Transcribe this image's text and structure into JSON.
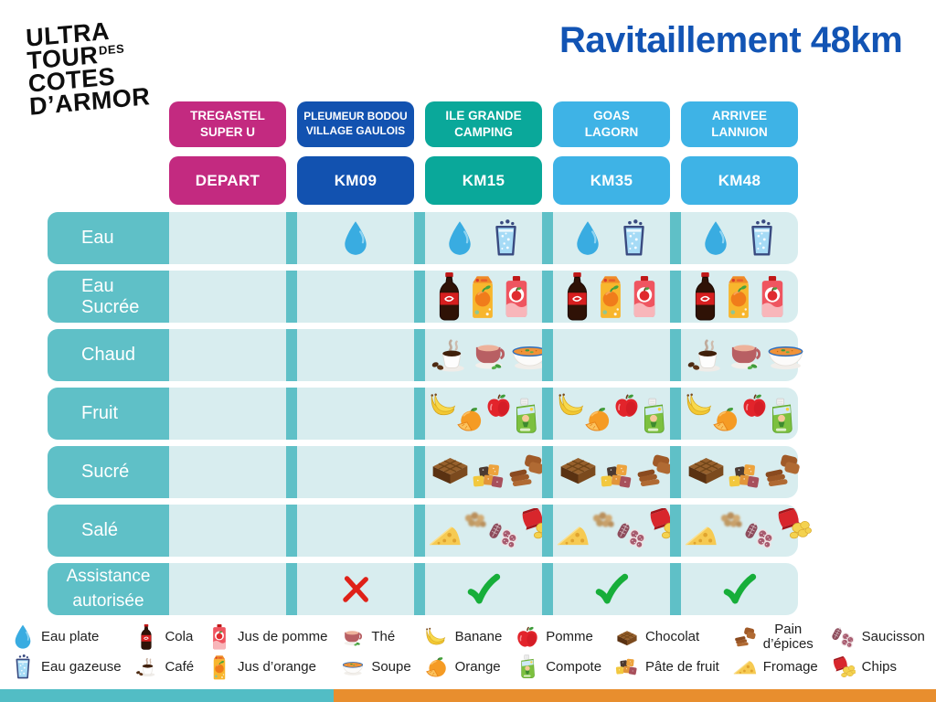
{
  "logo": {
    "line1": "ULTRA",
    "line2": "TOUR",
    "line2_small": "DES",
    "line3": "COTES",
    "line4": "D’ARMOR"
  },
  "title": "Ravitaillement 48km",
  "stations": [
    {
      "name": "TREGASTEL\nSUPER U",
      "km": "DEPART",
      "color": "#c32a80"
    },
    {
      "name": "PLEUMEUR BODOU\nVILLAGE GAULOIS",
      "km": "KM09",
      "color": "#1252b0"
    },
    {
      "name": "ILE GRANDE\nCAMPING",
      "km": "KM15",
      "color": "#0aa89a"
    },
    {
      "name": "GOAS\nLAGORN",
      "km": "KM35",
      "color": "#3eb3e6"
    },
    {
      "name": "ARRIVEE\nLANNION",
      "km": "KM48",
      "color": "#3eb3e6"
    }
  ],
  "supply_rows": [
    {
      "label": "Eau",
      "cells": [
        [],
        [
          "water-drop"
        ],
        [
          "water-drop",
          "sparkling-water"
        ],
        [
          "water-drop",
          "sparkling-water"
        ],
        [
          "water-drop",
          "sparkling-water"
        ]
      ]
    },
    {
      "label": "Eau Sucrée",
      "cells": [
        [],
        [],
        [
          "cola",
          "orange-juice",
          "apple-juice"
        ],
        [
          "cola",
          "orange-juice",
          "apple-juice"
        ],
        [
          "cola",
          "orange-juice",
          "apple-juice"
        ]
      ]
    },
    {
      "label": "Chaud",
      "cells": [
        [],
        [],
        [
          "coffee",
          "tea",
          "soup"
        ],
        [],
        [
          "coffee",
          "tea",
          "soup"
        ]
      ]
    },
    {
      "label": "Fruit",
      "cells": [
        [],
        [],
        [
          "banana",
          "orange",
          "apple",
          "compote"
        ],
        [
          "banana",
          "orange",
          "apple",
          "compote"
        ],
        [
          "banana",
          "orange",
          "apple",
          "compote"
        ]
      ]
    },
    {
      "label": "Sucré",
      "cells": [
        [],
        [],
        [
          "chocolate",
          "pate-de-fruit",
          "pain-epices"
        ],
        [
          "chocolate",
          "pate-de-fruit",
          "pain-epices"
        ],
        [
          "chocolate",
          "pate-de-fruit",
          "pain-epices"
        ]
      ]
    },
    {
      "label": "Salé",
      "cells": [
        [],
        [],
        [
          "fromage",
          "crackers-blurred",
          "saucisson",
          "chips"
        ],
        [
          "fromage",
          "crackers-blurred",
          "saucisson",
          "chips"
        ],
        [
          "fromage",
          "crackers-blurred",
          "saucisson",
          "chips"
        ]
      ]
    },
    {
      "label": "Assistance\nautorisée",
      "cells": [
        [],
        [
          "cross"
        ],
        [
          "check"
        ],
        [
          "check"
        ],
        [
          "check"
        ]
      ]
    }
  ],
  "legend_columns": [
    [
      {
        "icon": "water-drop",
        "label": "Eau plate"
      },
      {
        "icon": "sparkling-water",
        "label": "Eau gazeuse"
      }
    ],
    [
      {
        "icon": "cola",
        "label": "Cola"
      },
      {
        "icon": "coffee",
        "label": "Café"
      }
    ],
    [
      {
        "icon": "apple-juice",
        "label": "Jus de pomme"
      },
      {
        "icon": "orange-juice",
        "label": "Jus d’orange"
      }
    ],
    [
      {
        "icon": "tea",
        "label": "Thé"
      },
      {
        "icon": "soup",
        "label": "Soupe"
      }
    ],
    [
      {
        "icon": "banana",
        "label": "Banane"
      },
      {
        "icon": "orange",
        "label": "Orange"
      }
    ],
    [
      {
        "icon": "apple",
        "label": "Pomme"
      },
      {
        "icon": "compote",
        "label": "Compote"
      }
    ],
    [
      {
        "icon": "chocolate",
        "label": "Chocolat"
      },
      {
        "icon": "pate-de-fruit",
        "label": "Pâte de fruit"
      }
    ],
    [
      {
        "icon": "pain-epices",
        "label": "Pain\nd’épices"
      },
      {
        "icon": "fromage",
        "label": "Fromage"
      }
    ],
    [
      {
        "icon": "saucisson",
        "label": "Saucisson"
      },
      {
        "icon": "chips",
        "label": "Chips"
      }
    ]
  ],
  "colors": {
    "title": "#1254b4",
    "row_label_bg": "#5fc0c7",
    "cell_bg": "#d8edef",
    "separator": "#5fc0c7",
    "footer_teal": "#52bdc5",
    "footer_orange": "#e88e2e",
    "check_green": "#17ae3a",
    "cross_red": "#df2118"
  }
}
